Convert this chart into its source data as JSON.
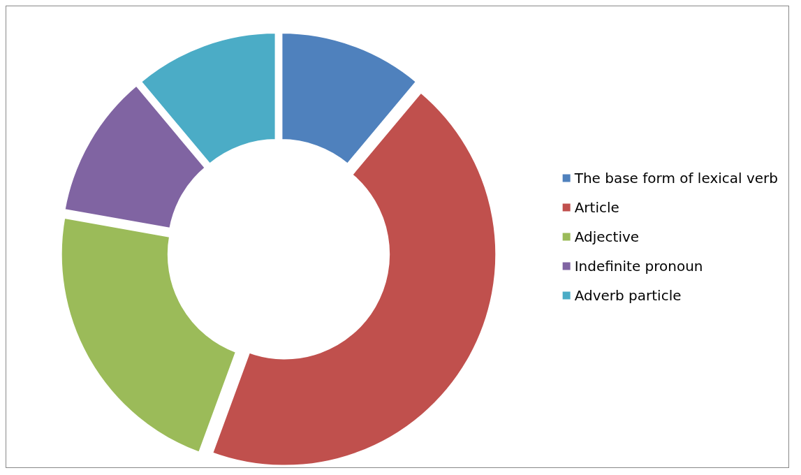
{
  "chart_data": {
    "type": "donut",
    "categories": [
      "The base form of lexical verb",
      "Article",
      "Adjective",
      "Indefinite pronoun",
      "Adverb particle"
    ],
    "values": [
      11.1,
      44.5,
      22.2,
      11.1,
      11.1
    ],
    "colors": [
      "#4f81bd",
      "#c0504d",
      "#9bbb59",
      "#8064a2",
      "#4bacc6"
    ],
    "legend": "right"
  }
}
